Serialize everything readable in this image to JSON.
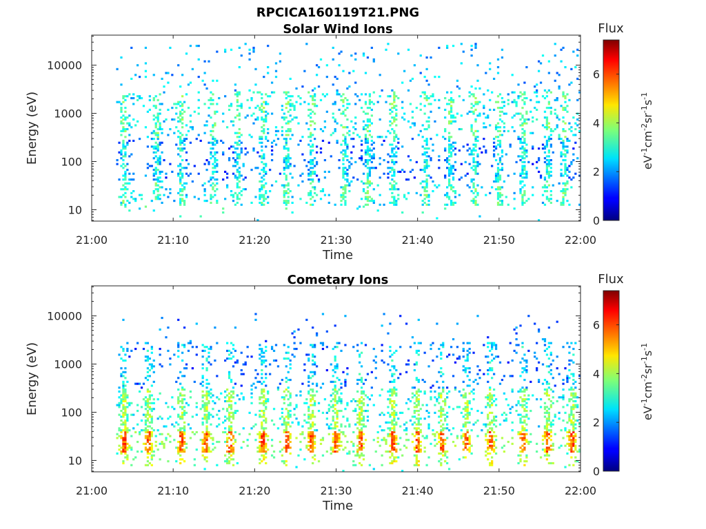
{
  "figure_title": "RPCICA160119T21.PNG",
  "chart_data": [
    {
      "type": "heatmap",
      "title": "Solar Wind Ions",
      "xlabel": "Time",
      "ylabel": "Energy (eV)",
      "x_ticks": [
        "21:00",
        "21:10",
        "21:20",
        "21:30",
        "21:40",
        "21:50",
        "22:00"
      ],
      "xlim": [
        "21:00",
        "22:00"
      ],
      "y_scale": "log",
      "y_ticks": [
        "10",
        "100",
        "1000",
        "10000"
      ],
      "ylim": [
        5.8,
        42000
      ],
      "colorbar": {
        "label": "Flux",
        "unit": "eV-1cm-2sr-1s-1",
        "ticks": [
          "0",
          "2",
          "4",
          "6"
        ],
        "range": [
          0,
          7.4
        ],
        "colormap": "jet"
      },
      "description_of_data": {
        "time_coverage": [
          "21:03",
          "22:00"
        ],
        "dominant_flux_range": [
          1.5,
          4.5
        ],
        "energy_band_main": [
          12,
          3000
        ],
        "vertical_bursts_at_minutes": [
          4,
          8,
          11,
          15,
          18,
          21,
          24,
          27,
          31,
          34,
          37,
          41,
          44,
          47,
          50,
          53,
          56,
          58
        ]
      }
    },
    {
      "type": "heatmap",
      "title": "Cometary Ions",
      "xlabel": "Time",
      "ylabel": "Energy (eV)",
      "x_ticks": [
        "21:00",
        "21:10",
        "21:20",
        "21:30",
        "21:40",
        "21:50",
        "22:00"
      ],
      "xlim": [
        "21:00",
        "22:00"
      ],
      "y_scale": "log",
      "y_ticks": [
        "10",
        "100",
        "1000",
        "10000"
      ],
      "ylim": [
        5.8,
        42000
      ],
      "colorbar": {
        "label": "Flux",
        "unit": "eV-1cm-2sr-1s-1",
        "ticks": [
          "0",
          "2",
          "4",
          "6"
        ],
        "range": [
          0,
          7.4
        ],
        "colormap": "jet"
      },
      "description_of_data": {
        "time_coverage": [
          "21:03",
          "22:00"
        ],
        "peak_flux_band_eV": [
          15,
          40
        ],
        "peak_flux_value": 6.2,
        "vertical_bursts_at_minutes": [
          4,
          7,
          11,
          14,
          17,
          21,
          24,
          27,
          30,
          33,
          37,
          40,
          43,
          46,
          49,
          53,
          56,
          59
        ]
      }
    }
  ]
}
